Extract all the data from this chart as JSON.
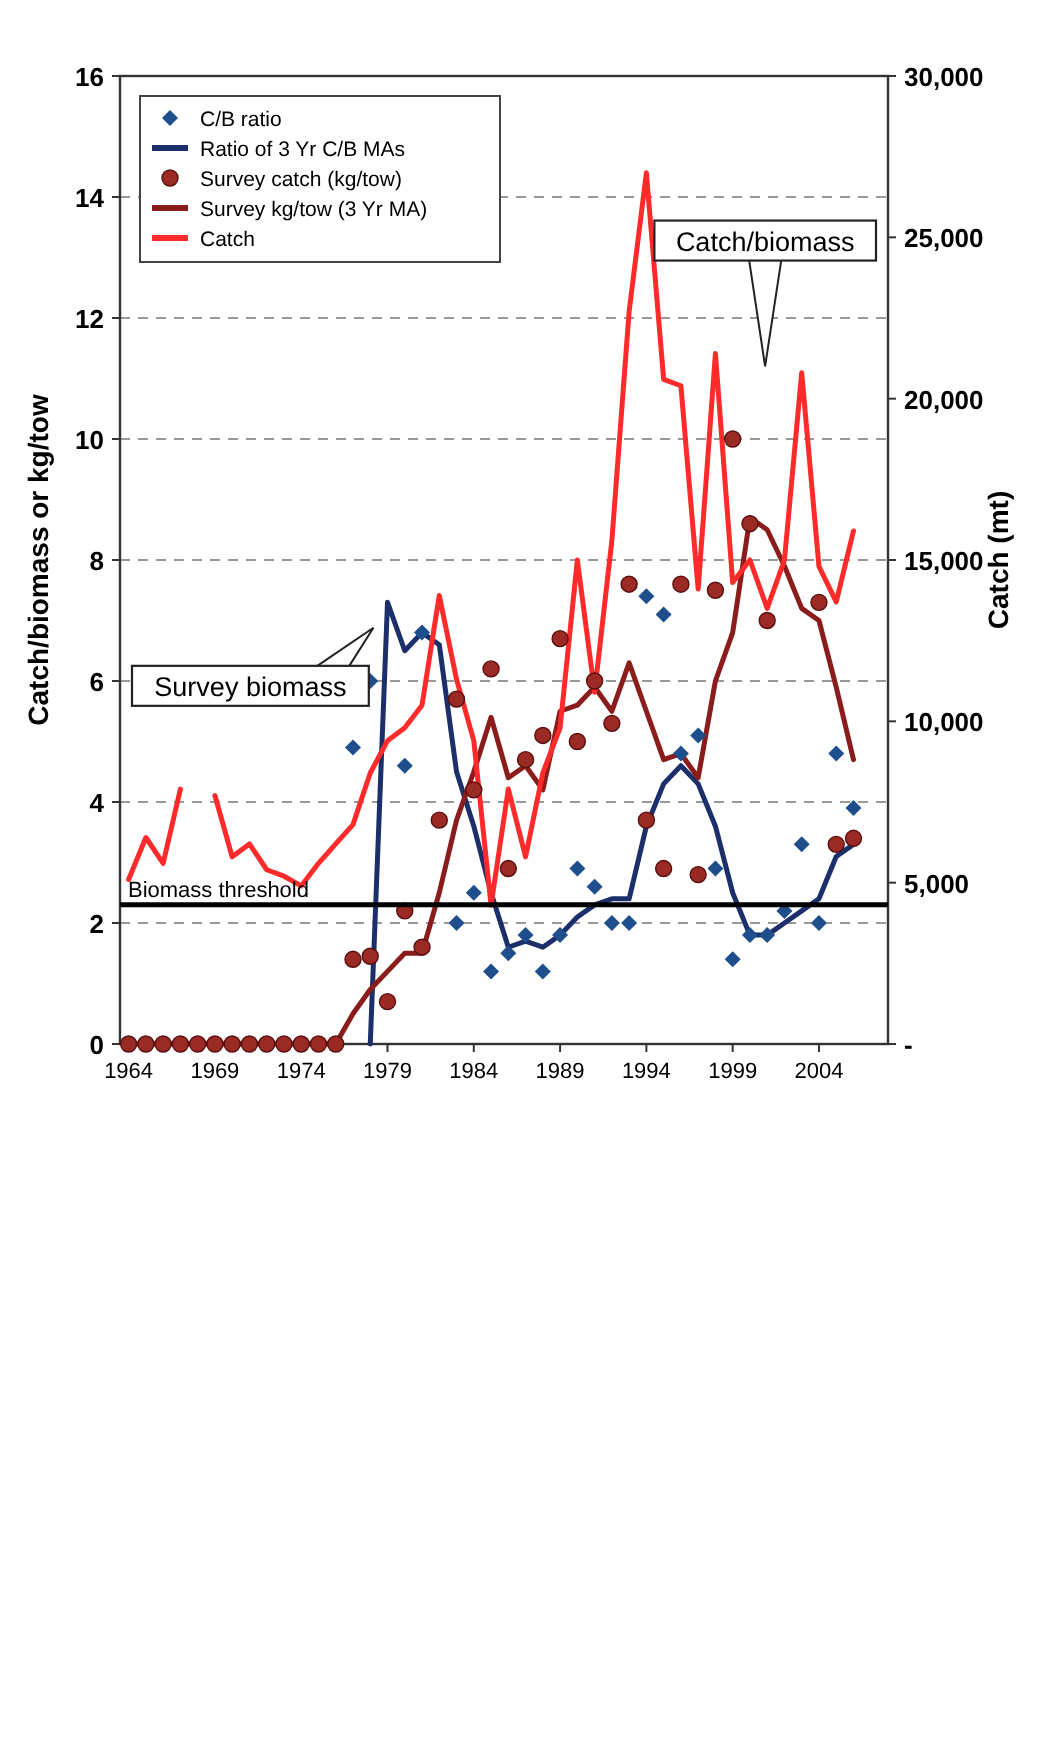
{
  "chart_data": {
    "type": "line",
    "xlabel": null,
    "ylabel": "Catch/biomass or kg/tow",
    "y2label": "Catch (mt)",
    "x": [
      1964,
      1965,
      1966,
      1967,
      1968,
      1969,
      1970,
      1971,
      1972,
      1973,
      1974,
      1975,
      1976,
      1977,
      1978,
      1979,
      1980,
      1981,
      1982,
      1983,
      1984,
      1985,
      1986,
      1987,
      1988,
      1989,
      1990,
      1991,
      1992,
      1993,
      1994,
      1995,
      1996,
      1997,
      1998,
      1999,
      2000,
      2001,
      2002,
      2003,
      2004,
      2005,
      2006
    ],
    "xlim": [
      1963.5,
      2008
    ],
    "xticks": [
      1964,
      1969,
      1974,
      1979,
      1984,
      1989,
      1994,
      1999,
      2004
    ],
    "ylim": [
      0,
      16
    ],
    "yticks": [
      0,
      2,
      4,
      6,
      8,
      10,
      12,
      14,
      16
    ],
    "y2lim": [
      0,
      30000
    ],
    "y2ticks": [
      {
        "value": 0,
        "label": "-"
      },
      {
        "value": 5000,
        "label": "5,000"
      },
      {
        "value": 10000,
        "label": "10,000"
      },
      {
        "value": 15000,
        "label": "15,000"
      },
      {
        "value": 20000,
        "label": "20,000"
      },
      {
        "value": 25000,
        "label": "25,000"
      },
      {
        "value": 30000,
        "label": "30,000"
      }
    ],
    "grid": "y",
    "legend": "top left",
    "series": [
      {
        "name": "C/B ratio",
        "type": "scatter",
        "marker": "diamond",
        "color": "#1f4e8c",
        "values": [
          null,
          null,
          null,
          null,
          null,
          null,
          null,
          null,
          null,
          null,
          null,
          null,
          null,
          4.9,
          6.0,
          null,
          4.6,
          6.8,
          null,
          2.0,
          2.5,
          1.2,
          1.5,
          1.8,
          1.2,
          1.8,
          2.9,
          2.6,
          2.0,
          2.0,
          7.4,
          7.1,
          4.8,
          5.1,
          2.9,
          1.4,
          1.8,
          1.8,
          2.2,
          3.3,
          2.0,
          4.8,
          3.9
        ]
      },
      {
        "name": "Ratio of 3 Yr C/B MAs",
        "type": "line",
        "marker": "none",
        "color": "#1c2f6b",
        "values": [
          null,
          null,
          null,
          null,
          null,
          null,
          null,
          null,
          null,
          null,
          null,
          null,
          null,
          null,
          0,
          7.3,
          6.5,
          6.8,
          6.6,
          4.5,
          3.6,
          2.5,
          1.6,
          1.7,
          1.6,
          1.8,
          2.1,
          2.3,
          2.4,
          2.4,
          3.6,
          4.3,
          4.6,
          4.3,
          3.6,
          2.5,
          1.8,
          1.8,
          2.0,
          2.2,
          2.4,
          3.1,
          3.3
        ]
      },
      {
        "name": "Survey catch (kg/tow)",
        "type": "scatter",
        "marker": "circle",
        "color": "#9c2a24",
        "values": [
          0,
          0,
          0,
          0,
          0,
          0,
          0,
          0,
          0,
          0,
          0,
          0,
          0,
          1.4,
          1.45,
          0.7,
          2.2,
          1.6,
          3.7,
          5.7,
          4.2,
          6.2,
          2.9,
          4.7,
          5.1,
          6.7,
          5.0,
          6.0,
          5.3,
          7.6,
          3.7,
          2.9,
          7.6,
          2.8,
          7.5,
          10.0,
          8.6,
          7.0,
          null,
          null,
          7.3,
          3.3,
          3.4
        ]
      },
      {
        "name": "Survey kg/tow (3 Yr MA)",
        "type": "line",
        "marker": "none",
        "color": "#8b1c1c",
        "values": [
          0,
          0,
          0,
          0,
          0,
          0,
          0,
          0,
          0,
          0,
          0,
          0,
          0,
          0.5,
          0.9,
          1.2,
          1.5,
          1.5,
          2.5,
          3.7,
          4.5,
          5.4,
          4.4,
          4.6,
          4.2,
          5.5,
          5.6,
          5.9,
          5.5,
          6.3,
          5.5,
          4.7,
          4.8,
          4.4,
          6.0,
          6.8,
          8.7,
          8.5,
          7.9,
          7.2,
          7.0,
          5.9,
          4.7
        ]
      },
      {
        "name": "Catch",
        "type": "line",
        "marker": "none",
        "axis": "y2",
        "color": "#ff2a2a",
        "values": [
          5100,
          6400,
          5600,
          7900,
          null,
          7700,
          5800,
          6200,
          5400,
          5200,
          4900,
          5600,
          6200,
          6800,
          8400,
          9400,
          9800,
          10500,
          13900,
          11300,
          9400,
          4300,
          7900,
          5800,
          8400,
          9800,
          15000,
          10900,
          15600,
          22700,
          27000,
          20600,
          20400,
          14100,
          21400,
          14300,
          15000,
          13500,
          15000,
          20800,
          14800,
          13700,
          15900
        ]
      }
    ],
    "ref_lines": [
      {
        "axis": "y",
        "value": 2.3,
        "label": "Biomass threshold",
        "color": "#000000"
      }
    ],
    "annotations": [
      "Survey biomass",
      "Catch/biomass"
    ]
  }
}
